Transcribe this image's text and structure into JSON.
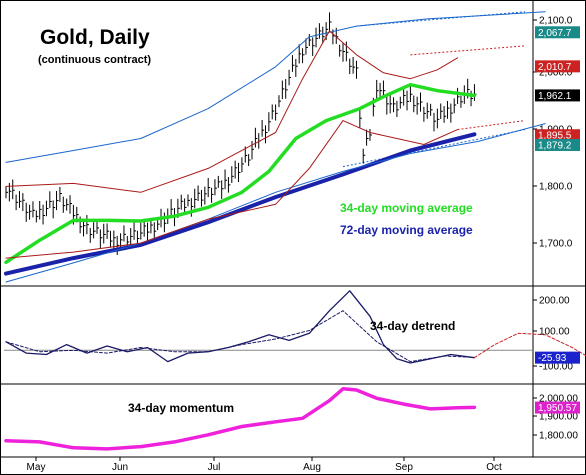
{
  "title": "Gold, Daily",
  "subtitle": "(continuous contract)",
  "x_axis": {
    "tick_labels": [
      "May",
      "Jun",
      "Jul",
      "Aug",
      "Sep",
      "Oct"
    ]
  },
  "chart_data": [
    {
      "type": "line",
      "panel": "price",
      "y_ticks": [
        "1,700.0",
        "1,800.0",
        "1,900.0",
        "2,000.0",
        "2,100.0"
      ],
      "ylim": [
        1645,
        2115
      ],
      "annotations": [
        {
          "text": "34-day moving average",
          "color": "#22dd22"
        },
        {
          "text": "72-day moving average",
          "color": "#1a22aa"
        }
      ],
      "price_badges": [
        {
          "text": "2,067.7",
          "value": 2067.7,
          "bg": "#1a8a88"
        },
        {
          "text": "2,010.7",
          "value": 2010.7,
          "bg": "#cc2222"
        },
        {
          "text": "1,962.1",
          "value": 1962.1,
          "bg": "#000000"
        },
        {
          "text": "1,895.5",
          "value": 1895.5,
          "bg": "#cc2222"
        },
        {
          "text": "1,879.2",
          "value": 1879.2,
          "bg": "#1a8a88"
        }
      ],
      "series": [
        {
          "name": "Gold daily price",
          "x": [
            0,
            8,
            16,
            24,
            32,
            40,
            48,
            56,
            64,
            72,
            80,
            88,
            96,
            104,
            106,
            108,
            110,
            115,
            120,
            128,
            136,
            139
          ],
          "values": [
            1810,
            1760,
            1790,
            1740,
            1720,
            1730,
            1760,
            1790,
            1810,
            1860,
            1940,
            2040,
            2075,
            2000,
            1860,
            1900,
            1980,
            1940,
            1960,
            1920,
            1965,
            1962
          ]
        },
        {
          "name": "34-day moving average",
          "x": [
            0,
            10,
            20,
            30,
            40,
            50,
            60,
            70,
            78,
            86,
            95,
            105,
            112,
            120,
            128,
            139
          ],
          "values": [
            1683,
            1720,
            1753,
            1753,
            1752,
            1760,
            1775,
            1800,
            1835,
            1890,
            1920,
            1940,
            1960,
            1980,
            1970,
            1962
          ]
        },
        {
          "name": "72-day moving average",
          "x": [
            0,
            20,
            40,
            60,
            80,
            100,
            120,
            139
          ],
          "values": [
            1664,
            1690,
            1712,
            1750,
            1792,
            1830,
            1870,
            1897
          ]
        },
        {
          "name": "upper band (red)",
          "x": [
            0,
            20,
            40,
            60,
            80,
            88,
            96,
            104,
            112,
            120,
            128,
            134
          ],
          "values": [
            1810,
            1815,
            1800,
            1840,
            1900,
            1990,
            2070,
            2030,
            2000,
            1990,
            2005,
            2025
          ]
        },
        {
          "name": "lower band (red)",
          "x": [
            0,
            20,
            40,
            60,
            80,
            90,
            100,
            108,
            116,
            124,
            134
          ],
          "values": [
            1690,
            1700,
            1715,
            1755,
            1780,
            1840,
            1920,
            1900,
            1890,
            1880,
            1905
          ]
        },
        {
          "name": "upper channel (blue)",
          "x": [
            0,
            20,
            40,
            60,
            80,
            90,
            104,
            125,
            160
          ],
          "values": [
            1850,
            1870,
            1890,
            1940,
            2010,
            2060,
            2078,
            2090,
            2102
          ]
        },
        {
          "name": "lower channel (blue)",
          "x": [
            0,
            20,
            40,
            60,
            80,
            100,
            120,
            140,
            160
          ],
          "values": [
            1650,
            1682,
            1715,
            1755,
            1800,
            1835,
            1865,
            1885,
            1915
          ]
        }
      ]
    },
    {
      "type": "line",
      "panel": "detrend",
      "label": "34-day detrend",
      "y_ticks": [
        "-100.00",
        "100.00",
        "200.00"
      ],
      "ylim": [
        -112,
        220
      ],
      "zero_line": 0,
      "value_badge": {
        "text": "-25.93",
        "value": -25.93,
        "bg": "#1a22cc"
      },
      "series": [
        {
          "name": "detrend",
          "x": [
            0,
            6,
            12,
            18,
            24,
            30,
            36,
            42,
            48,
            54,
            60,
            66,
            72,
            78,
            84,
            90,
            96,
            102,
            108,
            112,
            116,
            120,
            126,
            132,
            139
          ],
          "values": [
            30,
            -10,
            -15,
            20,
            -10,
            15,
            -5,
            10,
            -40,
            -10,
            -5,
            10,
            30,
            55,
            35,
            60,
            140,
            210,
            120,
            20,
            -30,
            -45,
            -30,
            -15,
            -26
          ]
        },
        {
          "name": "detrend smoothed",
          "x": [
            0,
            10,
            20,
            30,
            40,
            50,
            60,
            70,
            80,
            90,
            100,
            110,
            120,
            130,
            139
          ],
          "values": [
            30,
            -5,
            0,
            -10,
            10,
            -5,
            -5,
            20,
            40,
            70,
            140,
            30,
            -40,
            -20,
            -25
          ]
        },
        {
          "name": "detrend projection",
          "x": [
            139,
            145,
            152,
            160,
            168,
            175
          ],
          "values": [
            -26,
            20,
            60,
            55,
            10,
            -40
          ]
        }
      ]
    },
    {
      "type": "line",
      "panel": "momentum",
      "label": "34-day momentum",
      "y_ticks": [
        "1,800.00",
        "1,900.00",
        "2,000.00"
      ],
      "ylim": [
        1762,
        2042
      ],
      "value_badge": {
        "text": "1,950.57",
        "value": 1950.57,
        "bg": "#dd22cc"
      },
      "series": [
        {
          "name": "34-day momentum",
          "x": [
            0,
            10,
            20,
            30,
            40,
            50,
            60,
            70,
            80,
            88,
            96,
            100,
            104,
            110,
            118,
            126,
            134,
            139
          ],
          "values": [
            1810,
            1805,
            1780,
            1775,
            1785,
            1805,
            1835,
            1870,
            1890,
            1905,
            1980,
            2030,
            2025,
            1990,
            1965,
            1945,
            1950,
            1951
          ]
        }
      ]
    }
  ]
}
